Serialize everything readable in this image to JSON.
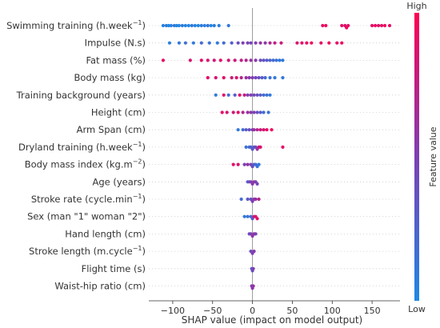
{
  "chart_data": {
    "type": "scatter",
    "subtype": "shap-beeswarm",
    "xlabel": "SHAP value (impact on model output)",
    "xlim": [
      -130,
      185
    ],
    "xticks": [
      -100,
      -50,
      0,
      50,
      100,
      150
    ],
    "xtick_labels": [
      "−100",
      "−50",
      "0",
      "50",
      "100",
      "150"
    ],
    "colorbar": {
      "title": "Feature value",
      "high_label": "High",
      "low_label": "Low",
      "low_color": "#1e88e5",
      "high_color": "#ff0052"
    },
    "features": [
      {
        "label": "Swimming training (h.week",
        "sup": "−1",
        "suffix": ")",
        "points": [
          [
            -112,
            0.05
          ],
          [
            -108,
            0.1
          ],
          [
            -105,
            0.0
          ],
          [
            -102,
            0.05
          ],
          [
            -98,
            0.1
          ],
          [
            -95,
            0.05
          ],
          [
            -92,
            0.0
          ],
          [
            -88,
            0.1
          ],
          [
            -84,
            0.05
          ],
          [
            -80,
            0.0
          ],
          [
            -76,
            0.1
          ],
          [
            -72,
            0.05
          ],
          [
            -68,
            0.0
          ],
          [
            -64,
            0.1
          ],
          [
            -60,
            0.05
          ],
          [
            -56,
            0.15
          ],
          [
            -52,
            0.0
          ],
          [
            -48,
            0.1
          ],
          [
            -42,
            0.05
          ],
          [
            -30,
            0.1
          ],
          [
            88,
            0.9
          ],
          [
            92,
            0.95
          ],
          [
            112,
            0.9
          ],
          [
            116,
            0.85
          ],
          [
            118,
            0.95
          ],
          [
            120,
            0.9
          ],
          [
            150,
            0.9
          ],
          [
            154,
            0.95
          ],
          [
            158,
            0.85
          ],
          [
            162,
            0.9
          ],
          [
            166,
            0.95
          ],
          [
            172,
            0.9
          ]
        ]
      },
      {
        "label": "Impulse (N.s)",
        "sup": "",
        "suffix": "",
        "points": [
          [
            -104,
            0.05
          ],
          [
            -92,
            0.1
          ],
          [
            -84,
            0.15
          ],
          [
            -74,
            0.1
          ],
          [
            -64,
            0.2
          ],
          [
            -54,
            0.15
          ],
          [
            -44,
            0.1
          ],
          [
            -36,
            0.2
          ],
          [
            -26,
            0.3
          ],
          [
            -18,
            0.4
          ],
          [
            -12,
            0.5
          ],
          [
            -6,
            0.5
          ],
          [
            -2,
            0.45
          ],
          [
            4,
            0.5
          ],
          [
            10,
            0.6
          ],
          [
            16,
            0.55
          ],
          [
            22,
            0.7
          ],
          [
            28,
            0.75
          ],
          [
            36,
            0.8
          ],
          [
            56,
            0.85
          ],
          [
            62,
            0.9
          ],
          [
            68,
            0.9
          ],
          [
            74,
            0.95
          ],
          [
            86,
            0.9
          ],
          [
            96,
            0.95
          ],
          [
            106,
            0.9
          ],
          [
            112,
            0.95
          ]
        ]
      },
      {
        "label": "Fat mass (%)",
        "sup": "",
        "suffix": "",
        "points": [
          [
            -112,
            0.9
          ],
          [
            -78,
            0.85
          ],
          [
            -64,
            0.9
          ],
          [
            -56,
            0.85
          ],
          [
            -48,
            0.8
          ],
          [
            -40,
            0.9
          ],
          [
            -30,
            0.85
          ],
          [
            -22,
            0.8
          ],
          [
            -14,
            0.75
          ],
          [
            -8,
            0.7
          ],
          [
            -2,
            0.6
          ],
          [
            4,
            0.55
          ],
          [
            10,
            0.4
          ],
          [
            14,
            0.35
          ],
          [
            18,
            0.3
          ],
          [
            22,
            0.25
          ],
          [
            26,
            0.2
          ],
          [
            30,
            0.15
          ],
          [
            34,
            0.1
          ],
          [
            38,
            0.1
          ]
        ]
      },
      {
        "label": "Body mass (kg)",
        "sup": "",
        "suffix": "",
        "points": [
          [
            -56,
            0.9
          ],
          [
            -46,
            0.85
          ],
          [
            -36,
            0.9
          ],
          [
            -26,
            0.8
          ],
          [
            -20,
            0.85
          ],
          [
            -14,
            0.7
          ],
          [
            -8,
            0.6
          ],
          [
            -4,
            0.55
          ],
          [
            0,
            0.5
          ],
          [
            4,
            0.45
          ],
          [
            8,
            0.4
          ],
          [
            12,
            0.3
          ],
          [
            16,
            0.2
          ],
          [
            22,
            0.15
          ],
          [
            28,
            0.1
          ],
          [
            38,
            0.1
          ]
        ]
      },
      {
        "label": "Training background (years)",
        "sup": "",
        "suffix": "",
        "points": [
          [
            -46,
            0.1
          ],
          [
            -36,
            0.9
          ],
          [
            -30,
            0.2
          ],
          [
            -22,
            0.3
          ],
          [
            -16,
            0.9
          ],
          [
            -10,
            0.8
          ],
          [
            -6,
            0.5
          ],
          [
            -2,
            0.5
          ],
          [
            2,
            0.45
          ],
          [
            6,
            0.4
          ],
          [
            10,
            0.3
          ],
          [
            14,
            0.2
          ],
          [
            18,
            0.15
          ],
          [
            22,
            0.1
          ]
        ]
      },
      {
        "label": "Height (cm)",
        "sup": "",
        "suffix": "",
        "points": [
          [
            -38,
            0.9
          ],
          [
            -32,
            0.85
          ],
          [
            -24,
            0.8
          ],
          [
            -18,
            0.9
          ],
          [
            -12,
            0.7
          ],
          [
            -6,
            0.6
          ],
          [
            -2,
            0.55
          ],
          [
            2,
            0.5
          ],
          [
            6,
            0.4
          ],
          [
            10,
            0.3
          ],
          [
            14,
            0.2
          ],
          [
            20,
            0.15
          ]
        ]
      },
      {
        "label": "Arm Span (cm)",
        "sup": "",
        "suffix": "",
        "points": [
          [
            -18,
            0.1
          ],
          [
            -12,
            0.2
          ],
          [
            -8,
            0.3
          ],
          [
            -4,
            0.4
          ],
          [
            0,
            0.5
          ],
          [
            2,
            0.6
          ],
          [
            6,
            0.7
          ],
          [
            10,
            0.8
          ],
          [
            14,
            0.85
          ],
          [
            18,
            0.9
          ],
          [
            24,
            0.95
          ]
        ]
      },
      {
        "label": "Dryland training (h.week",
        "sup": "−1",
        "suffix": ")",
        "points": [
          [
            -8,
            0.15
          ],
          [
            -4,
            0.2
          ],
          [
            -2,
            0.25
          ],
          [
            0,
            0.3
          ],
          [
            2,
            0.35
          ],
          [
            4,
            0.4
          ],
          [
            6,
            0.6
          ],
          [
            8,
            0.8
          ],
          [
            10,
            0.85
          ],
          [
            38,
            0.9
          ]
        ]
      },
      {
        "label": "Body mass index (kg.m",
        "sup": "−2",
        "suffix": ")",
        "points": [
          [
            -24,
            0.9
          ],
          [
            -18,
            0.85
          ],
          [
            -10,
            0.5
          ],
          [
            -6,
            0.6
          ],
          [
            -2,
            0.45
          ],
          [
            0,
            0.4
          ],
          [
            2,
            0.3
          ],
          [
            4,
            0.2
          ],
          [
            6,
            0.15
          ],
          [
            8,
            0.1
          ]
        ]
      },
      {
        "label": "Age (years)",
        "sup": "",
        "suffix": "",
        "points": [
          [
            -6,
            0.3
          ],
          [
            -4,
            0.4
          ],
          [
            -2,
            0.5
          ],
          [
            0,
            0.55
          ],
          [
            2,
            0.6
          ],
          [
            4,
            0.5
          ],
          [
            6,
            0.45
          ]
        ]
      },
      {
        "label": "Stroke rate (cycle.min",
        "sup": "−1",
        "suffix": ")",
        "points": [
          [
            -14,
            0.2
          ],
          [
            -6,
            0.3
          ],
          [
            -2,
            0.4
          ],
          [
            0,
            0.5
          ],
          [
            2,
            0.55
          ],
          [
            4,
            0.6
          ],
          [
            8,
            0.7
          ]
        ]
      },
      {
        "label": "Sex (man \"1\" woman \"2\")",
        "sup": "",
        "suffix": "",
        "points": [
          [
            -10,
            0.1
          ],
          [
            -6,
            0.15
          ],
          [
            -2,
            0.2
          ],
          [
            0,
            0.3
          ],
          [
            2,
            0.8
          ],
          [
            4,
            0.85
          ],
          [
            6,
            0.9
          ]
        ]
      },
      {
        "label": "Hand length (cm)",
        "sup": "",
        "suffix": "",
        "points": [
          [
            -4,
            0.4
          ],
          [
            -2,
            0.5
          ],
          [
            0,
            0.55
          ],
          [
            2,
            0.6
          ],
          [
            4,
            0.5
          ]
        ]
      },
      {
        "label": "Stroke length (m.cycle",
        "sup": "−1",
        "suffix": ")",
        "points": [
          [
            -2,
            0.4
          ],
          [
            0,
            0.5
          ],
          [
            2,
            0.55
          ]
        ]
      },
      {
        "label": "Flight time (s)",
        "sup": "",
        "suffix": "",
        "points": [
          [
            -1,
            0.3
          ],
          [
            0,
            0.4
          ],
          [
            1,
            0.5
          ]
        ]
      },
      {
        "label": "Waist-hip ratio (cm)",
        "sup": "",
        "suffix": "",
        "points": [
          [
            -1,
            0.5
          ],
          [
            0,
            0.55
          ],
          [
            1,
            0.6
          ]
        ]
      }
    ]
  }
}
